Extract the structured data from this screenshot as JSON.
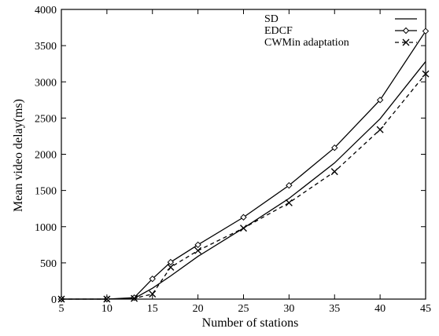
{
  "chart_data": {
    "type": "line",
    "title": "",
    "xlabel": "Number of stations",
    "ylabel": "Mean video delay(ms)",
    "xlim": [
      5,
      45
    ],
    "ylim": [
      0,
      4000
    ],
    "xticks": [
      5,
      10,
      15,
      20,
      25,
      30,
      35,
      40,
      45
    ],
    "yticks": [
      0,
      500,
      1000,
      1500,
      2000,
      2500,
      3000,
      3500,
      4000
    ],
    "grid": false,
    "legend_position": "top-right",
    "series": [
      {
        "name": "SD",
        "line_style": "solid",
        "marker": "none",
        "color": "#000000",
        "x": [
          5,
          10,
          13,
          15,
          17,
          20,
          25,
          30,
          35,
          40,
          45
        ],
        "y": [
          0,
          0,
          10,
          150,
          320,
          590,
          980,
          1390,
          1880,
          2490,
          3280
        ]
      },
      {
        "name": "EDCF",
        "line_style": "solid",
        "marker": "diamond",
        "color": "#000000",
        "x": [
          5,
          10,
          13,
          15,
          17,
          20,
          25,
          30,
          35,
          40,
          45
        ],
        "y": [
          0,
          0,
          20,
          280,
          510,
          750,
          1130,
          1570,
          2090,
          2750,
          3700
        ]
      },
      {
        "name": "CWMin adaptation",
        "line_style": "dashed",
        "marker": "x",
        "color": "#000000",
        "x": [
          5,
          10,
          13,
          15,
          17,
          20,
          25,
          30,
          35,
          40,
          45
        ],
        "y": [
          0,
          0,
          10,
          70,
          440,
          670,
          980,
          1330,
          1760,
          2340,
          3110
        ]
      }
    ]
  }
}
